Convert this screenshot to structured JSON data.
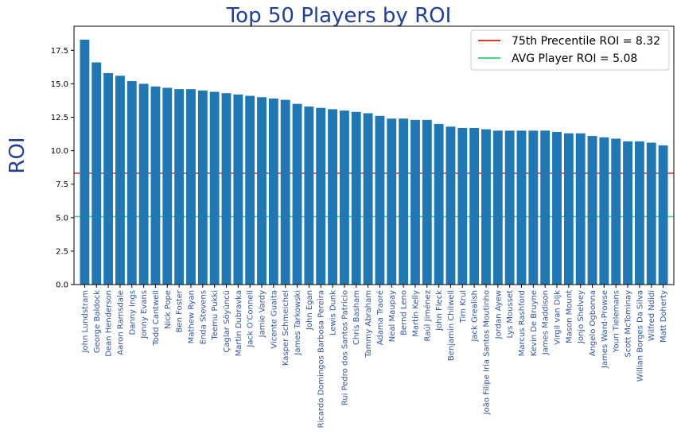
{
  "chart_data": {
    "type": "bar",
    "title": "Top 50 Players by ROI",
    "xlabel": "",
    "ylabel": "ROI",
    "ylim": [
      0,
      19.3
    ],
    "yticks": [
      0.0,
      2.5,
      5.0,
      7.5,
      10.0,
      12.5,
      15.0,
      17.5
    ],
    "ytick_labels": [
      "0.0",
      "2.5",
      "5.0",
      "7.5",
      "10.0",
      "12.5",
      "15.0",
      "17.5"
    ],
    "grid": false,
    "legend_position": "top-right",
    "categories": [
      "John Lundstram",
      "George Baldock",
      "Dean Henderson",
      "Aaron Ramsdale",
      "Danny Ings",
      "Jonny Evans",
      "Todd Cantwell",
      "Nick Pope",
      "Ben Foster",
      "Mathew Ryan",
      "Enda Stevens",
      "Teemu Pukki",
      "Çaglar Söyüncü",
      "Martin Dubravka",
      "Jack O'Connell",
      "Jamie Vardy",
      "Vicente Guaita",
      "Kasper Schmeichel",
      "James Tarkowski",
      "John Egan",
      "Ricardo Domingos Barbosa Pereira",
      "Lewis Dunk",
      "Rui Pedro dos Santos Patrício",
      "Chris Basham",
      "Tammy Abraham",
      "Adama Traoré",
      "Neal Maupay",
      "Bernd Leno",
      "Martin Kelly",
      "Raúl Jiménez",
      "John Fleck",
      "Benjamin Chilwell",
      "Tim Krul",
      "Jack Grealish",
      "João Filipe Iria Santos Moutinho",
      "Jordan Ayew",
      "Lys Mousset",
      "Marcus Rashford",
      "Kevin De Bruyne",
      "James Maddison",
      "Virgil van Dijk",
      "Mason Mount",
      "Jonjo Shelvey",
      "Angelo Ogbonna",
      "James Ward-Prowse",
      "Youri Tielemans",
      "Scott McTominay",
      "Willian Borges Da Silva",
      "Wilfred Ndidi",
      "Matt Doherty"
    ],
    "values": [
      18.3,
      16.6,
      15.8,
      15.6,
      15.2,
      15.0,
      14.8,
      14.7,
      14.6,
      14.6,
      14.5,
      14.4,
      14.3,
      14.2,
      14.1,
      14.0,
      13.9,
      13.8,
      13.5,
      13.3,
      13.2,
      13.1,
      13.0,
      12.9,
      12.8,
      12.6,
      12.4,
      12.4,
      12.3,
      12.3,
      12.0,
      11.8,
      11.7,
      11.7,
      11.6,
      11.5,
      11.5,
      11.5,
      11.5,
      11.5,
      11.4,
      11.3,
      11.3,
      11.1,
      11.0,
      10.9,
      10.7,
      10.7,
      10.6,
      10.4
    ],
    "bar_color": "#1f77b4",
    "reference_lines": [
      {
        "label": "75th Precentile ROI = 8.32",
        "value": 8.32,
        "color": "#e8362d"
      },
      {
        "label": "AVG Player ROI = 5.08",
        "value": 5.08,
        "color": "#3ddc84"
      }
    ],
    "title_color": "#1f3f99",
    "label_color": "#1f3f99",
    "tick_label_color": "#2f55a4"
  }
}
